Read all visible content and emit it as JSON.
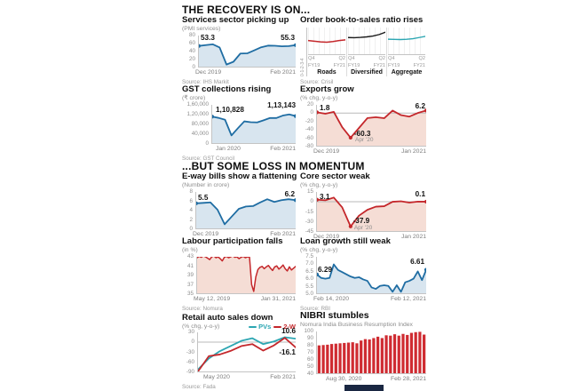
{
  "sections": {
    "recovery_title": "THE RECOVERY IS ON...",
    "momentum_title": "...BUT SOME LOSS IN MOMENTUM"
  },
  "colors": {
    "blue": "#1f6da3",
    "blue_fill": "#d8e5ef",
    "red": "#c4272b",
    "red_fill": "#f5ddd5",
    "teal": "#2ca6b2",
    "black": "#1a1a1a",
    "bar_red": "#cf2b31",
    "credit_strip": "#1a2742"
  },
  "chart_data": [
    {
      "id": "services",
      "type": "line",
      "title": "Services sector picking up",
      "unit": "(PMI services)",
      "source": "Source: IHS Markit",
      "ylim": [
        0,
        80
      ],
      "zero": null,
      "yticks": [
        "80",
        "60",
        "40",
        "20",
        "0"
      ],
      "xlabels": [
        "Dec 2019",
        "Feb 2021"
      ],
      "labels": {
        "start": "53.3",
        "end": "55.3"
      },
      "series": [
        {
          "name": "PMI services",
          "color": "#1f6da3",
          "fill": "#d8e5ef",
          "width": 1.8,
          "markers": [
            0,
            -1
          ],
          "values": [
            53.3,
            55.5,
            57.5,
            49.3,
            5.4,
            12.6,
            33.7,
            34.2,
            41.8,
            49.8,
            54.1,
            53.7,
            52.3,
            52.8,
            55.3
          ]
        }
      ]
    },
    {
      "id": "orderbook",
      "type": "line-panels",
      "title": "Order book-to-sales ratio rises",
      "source": "Source: Crisil",
      "yaxis_label": "0-1-2-3-4",
      "panels": [
        {
          "name": "Roads",
          "x_top": [
            "Q4",
            "Q2"
          ],
          "x_bottom": [
            "FY19",
            "FY21"
          ],
          "ylim": [
            0,
            4
          ],
          "series": [
            {
              "name": "Roads",
              "color": "#c4272b",
              "width": 1.4,
              "values": [
                2.05,
                1.95,
                1.85,
                1.8,
                1.9,
                2.05,
                2.15
              ]
            }
          ]
        },
        {
          "name": "Diversified",
          "x_top": [
            "Q4",
            "Q2"
          ],
          "x_bottom": [
            "FY19",
            "FY21"
          ],
          "ylim": [
            0,
            4
          ],
          "series": [
            {
              "name": "Diversified",
              "color": "#1a1a1a",
              "width": 1.4,
              "values": [
                2.5,
                2.48,
                2.52,
                2.6,
                2.72,
                2.95,
                3.3
              ]
            }
          ]
        },
        {
          "name": "Aggregate",
          "x_top": [
            "Q4",
            "Q2"
          ],
          "x_bottom": [
            "FY19",
            "FY21"
          ],
          "ylim": [
            0,
            4
          ],
          "series": [
            {
              "name": "Aggregate",
              "color": "#2ca6b2",
              "width": 1.4,
              "values": [
                2.25,
                2.22,
                2.2,
                2.24,
                2.32,
                2.5,
                2.68
              ]
            }
          ]
        }
      ]
    },
    {
      "id": "gst",
      "type": "line",
      "title": "GST collections rising",
      "unit": "(₹ crore)",
      "source": "Source: GST Council",
      "ylim": [
        0,
        160000
      ],
      "zero": null,
      "yticks": [
        "1,60,000",
        "1,20,000",
        "80,000",
        "40,000",
        "0"
      ],
      "xlabels": [
        "Jan 2020",
        "Feb 2021"
      ],
      "labels": {
        "start": "1,10,828",
        "end": "1,13,143"
      },
      "series": [
        {
          "name": "GST collections",
          "color": "#1f6da3",
          "fill": "#d8e5ef",
          "width": 1.8,
          "markers": [
            0,
            -1
          ],
          "values": [
            110828,
            105366,
            97597,
            32172,
            62151,
            90917,
            87422,
            86449,
            95480,
            105155,
            104963,
            115174,
            119847,
            113143
          ]
        }
      ]
    },
    {
      "id": "exports",
      "type": "line",
      "title": "Exports grow",
      "unit": "(% chg, y-o-y)",
      "source": "",
      "ylim": [
        -80,
        20
      ],
      "zero": 0,
      "yticks": [
        "20",
        "0",
        "-20",
        "-40",
        "-60",
        "-80"
      ],
      "xlabels": [
        "Dec 2019",
        "Jan 2021"
      ],
      "labels": {
        "start": "1.8",
        "end": "6.2",
        "dip": "-60.3",
        "dip_sub": "Apr '20"
      },
      "series": [
        {
          "name": "Exports",
          "color": "#c4272b",
          "fill": "#f5ddd5",
          "width": 1.8,
          "markers": [
            0,
            4,
            -1
          ],
          "values": [
            1.8,
            -1.7,
            2.9,
            -34.6,
            -60.3,
            -36.5,
            -12.4,
            -10.2,
            -12.7,
            6.0,
            -5.1,
            -8.7,
            0.1,
            6.2
          ]
        }
      ]
    },
    {
      "id": "eway",
      "type": "line",
      "title": "E-way bills show a flattening",
      "unit": "(Number in crore)",
      "source": "",
      "ylim": [
        0,
        8
      ],
      "zero": null,
      "yticks": [
        "8",
        "6",
        "4",
        "2",
        "0"
      ],
      "xlabels": [
        "Dec 2019",
        "Feb 2021"
      ],
      "labels": {
        "start": "5.5",
        "end": "6.2"
      },
      "series": [
        {
          "name": "E-way bills",
          "color": "#1f6da3",
          "fill": "#d8e5ef",
          "width": 1.8,
          "markers": [
            0,
            -1
          ],
          "values": [
            5.5,
            5.6,
            5.7,
            4.1,
            0.9,
            2.6,
            4.3,
            4.8,
            4.9,
            5.7,
            6.4,
            5.8,
            6.2,
            6.4,
            6.2
          ]
        }
      ]
    },
    {
      "id": "core",
      "type": "line",
      "title": "Core sector weak",
      "unit": "(% chg, y-o-y)",
      "source": "",
      "ylim": [
        -45,
        15
      ],
      "zero": 0,
      "yticks": [
        "15",
        "0",
        "-15",
        "-30",
        "-45"
      ],
      "xlabels": [
        "Dec 2019",
        "Jan 2021"
      ],
      "labels": {
        "start": "3.1",
        "end": "0.1",
        "dip": "-37.9",
        "dip_sub": "Apr '20"
      },
      "series": [
        {
          "name": "Core sector",
          "color": "#c4272b",
          "fill": "#f5ddd5",
          "width": 1.8,
          "markers": [
            0,
            4,
            -1
          ],
          "values": [
            3.1,
            2.2,
            6.4,
            -8.6,
            -37.9,
            -21.4,
            -12.4,
            -7.6,
            -6.9,
            -0.1,
            0.7,
            -1.4,
            0.2,
            0.1
          ]
        }
      ]
    },
    {
      "id": "labour",
      "type": "line",
      "title": "Labour participation falls",
      "unit": "(in %)",
      "source": "Source: Nomura",
      "ylim": [
        35,
        43
      ],
      "zero": null,
      "yticks": [
        "43",
        "41",
        "39",
        "37",
        "35"
      ],
      "xlabels": [
        "May 12, 2019",
        "Jan 31, 2021"
      ],
      "labels": {},
      "series": [
        {
          "name": "Labour participation rate",
          "color": "#c4272b",
          "fill": "#f5ddd5",
          "width": 1.5,
          "markers": [],
          "values": [
            42.8,
            43.1,
            42.9,
            43.2,
            43.0,
            42.7,
            42.4,
            43.0,
            43.2,
            42.8,
            43.0,
            42.6,
            42.1,
            42.9,
            43.1,
            42.8,
            43.0,
            43.2,
            42.9,
            43.0,
            42.6,
            42.9,
            43.1,
            42.8,
            43.0,
            42.9,
            36.9,
            35.4,
            38.6,
            40.2,
            40.7,
            40.9,
            40.4,
            40.8,
            41.1,
            40.5,
            40.0,
            40.8,
            41.0,
            40.3,
            40.7,
            41.2,
            40.4,
            39.9,
            40.8,
            40.1,
            40.5,
            40.9
          ]
        }
      ]
    },
    {
      "id": "loan",
      "type": "line",
      "title": "Loan growth still weak",
      "unit": "(% chg, y-o-y)",
      "source": "Source: RBI",
      "ylim": [
        5.0,
        7.5
      ],
      "zero": null,
      "yticks": [
        "7.5",
        "7.0",
        "6.5",
        "6.0",
        "5.5",
        "5.0"
      ],
      "xlabels": [
        "Feb 14, 2020",
        "Feb 12, 2021"
      ],
      "labels": {
        "start": "6.29",
        "end": "6.61"
      },
      "series": [
        {
          "name": "Loan growth",
          "color": "#1f6da3",
          "fill": "#d8e5ef",
          "width": 1.8,
          "markers": [
            0,
            -1
          ],
          "values": [
            6.29,
            6.05,
            6.0,
            6.05,
            6.98,
            6.6,
            6.45,
            6.3,
            6.15,
            6.05,
            6.1,
            5.95,
            5.85,
            5.4,
            5.3,
            5.5,
            5.55,
            5.5,
            5.1,
            5.55,
            5.1,
            5.75,
            5.85,
            6.0,
            6.5,
            5.9,
            6.61
          ]
        }
      ]
    },
    {
      "id": "retail",
      "type": "line",
      "title": "Retail auto sales down",
      "unit": "(% chg, y-o-y)",
      "source": "Source: Fada",
      "legend": [
        {
          "label": "PVs",
          "color": "#2ca6b2"
        },
        {
          "label": "2-W",
          "color": "#c4272b"
        }
      ],
      "ylim": [
        -90,
        30
      ],
      "zero": 0,
      "yticks": [
        "30",
        "0",
        "-30",
        "-60",
        "-90"
      ],
      "xlabels": [
        "May 2020",
        "Feb 2021"
      ],
      "labels": {
        "pv_end": "10.6",
        "tw_end": "-16.1"
      },
      "series": [
        {
          "name": "PVs",
          "color": "#2ca6b2",
          "width": 1.8,
          "markers": [],
          "values": [
            -84,
            -50,
            -28,
            -12,
            4,
            12,
            -6,
            2,
            15,
            10.6
          ]
        },
        {
          "name": "2-W",
          "color": "#c4272b",
          "width": 1.8,
          "markers": [],
          "values": [
            -90,
            -43,
            -38,
            -27,
            -12,
            -6,
            -26,
            -10,
            13,
            -16.1
          ]
        }
      ]
    },
    {
      "id": "nibri",
      "type": "bar",
      "title": "NIBRI stumbles",
      "subtitle": "Nomura India Business Resumption Index",
      "source": "",
      "ylim": [
        40,
        100
      ],
      "zero": null,
      "yticks": [
        "100",
        "90",
        "80",
        "70",
        "60",
        "50",
        "40"
      ],
      "xlabels": [
        "Aug 30, 2020",
        "Feb 28, 2021"
      ],
      "labels": {},
      "series": [
        {
          "name": "NIBRI",
          "color": "#cf2b31",
          "values": [
            80,
            80.5,
            81,
            82,
            82.5,
            83,
            83.5,
            84,
            84.5,
            83,
            87,
            89,
            88.5,
            90.5,
            92.5,
            90.5,
            94.5,
            94,
            96,
            94,
            96.5,
            95,
            98,
            99,
            99.5,
            95.5
          ]
        }
      ]
    }
  ]
}
